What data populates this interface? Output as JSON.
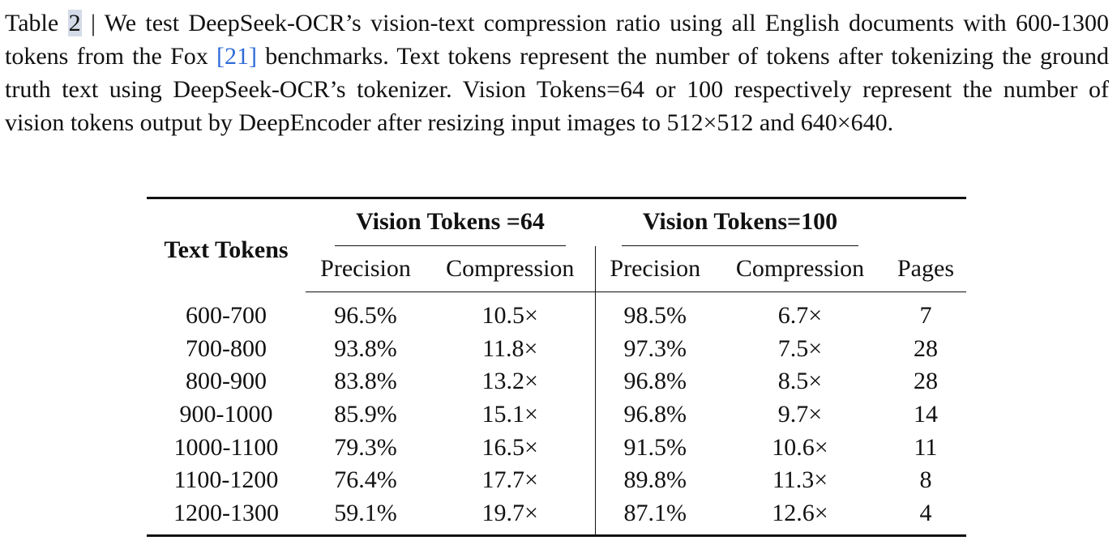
{
  "caption": {
    "label": "Table",
    "number": "2",
    "text_before_ref": " | We test DeepSeek-OCR’s vision-text compression ratio using all English documents with 600-1300 tokens from the Fox ",
    "ref": "[21]",
    "text_after_ref": " benchmarks. Text tokens represent the number of tokens after tokenizing the ground truth text using DeepSeek-OCR’s tokenizer. Vision Tokens=64 or 100 respectively represent the number of vision tokens output by DeepEncoder after resizing input images to 512×512 and 640×640."
  },
  "table": {
    "row_header": "Text Tokens",
    "group_64": "Vision Tokens =64",
    "group_100": "Vision Tokens=100",
    "sub_headers": {
      "precision_64": "Precision",
      "compression_64": "Compression",
      "precision_100": "Precision",
      "compression_100": "Compression",
      "pages": "Pages"
    },
    "rows": [
      {
        "text_tokens": "600-700",
        "p64": "96.5%",
        "c64": "10.5×",
        "p100": "98.5%",
        "c100": "6.7×",
        "pages": "7"
      },
      {
        "text_tokens": "700-800",
        "p64": "93.8%",
        "c64": "11.8×",
        "p100": "97.3%",
        "c100": "7.5×",
        "pages": "28"
      },
      {
        "text_tokens": "800-900",
        "p64": "83.8%",
        "c64": "13.2×",
        "p100": "96.8%",
        "c100": "8.5×",
        "pages": "28"
      },
      {
        "text_tokens": "900-1000",
        "p64": "85.9%",
        "c64": "15.1×",
        "p100": "96.8%",
        "c100": "9.7×",
        "pages": "14"
      },
      {
        "text_tokens": "1000-1100",
        "p64": "79.3%",
        "c64": "16.5×",
        "p100": "91.5%",
        "c100": "10.6×",
        "pages": "11"
      },
      {
        "text_tokens": "1100-1200",
        "p64": "76.4%",
        "c64": "17.7×",
        "p100": "89.8%",
        "c100": "11.3×",
        "pages": "8"
      },
      {
        "text_tokens": "1200-1300",
        "p64": "59.1%",
        "c64": "19.7×",
        "p100": "87.1%",
        "c100": "12.6×",
        "pages": "4"
      }
    ]
  },
  "colors": {
    "text": "#111111",
    "ref_link": "#2f6bd8",
    "highlight": "#d3dbe8"
  }
}
